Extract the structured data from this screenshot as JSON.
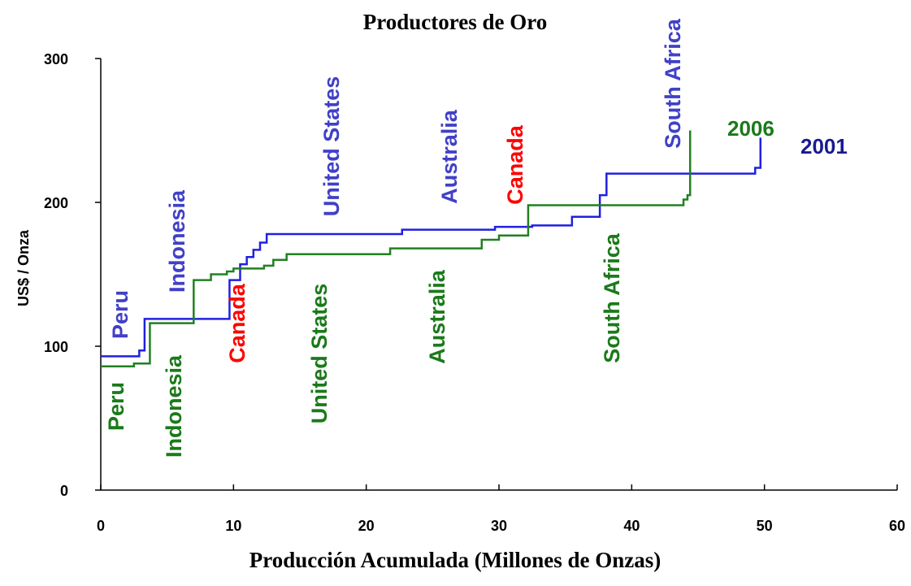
{
  "chart_data": {
    "type": "step",
    "title": "Productores de Oro",
    "x_label": "Producción Acumulada (Millones de Onzas)",
    "y_label": "US$ / Onza",
    "xlim": [
      0,
      60
    ],
    "xticks": [
      0,
      10,
      20,
      30,
      40,
      50,
      60
    ],
    "ylim": [
      0,
      300
    ],
    "yticks": [
      0,
      100,
      200,
      300
    ],
    "grid": false,
    "series": [
      {
        "name": "2001",
        "color": "#2020e0",
        "label_color": "#1a1a90",
        "x": [
          0,
          2.9,
          3.3,
          9.7,
          10.5,
          11,
          11.5,
          12,
          12.5,
          22.7,
          29.7,
          32.5,
          35.5,
          37.6,
          38.1,
          49.3,
          49.7
        ],
        "values": [
          93,
          97,
          119,
          146,
          157,
          162,
          167,
          172,
          178,
          181,
          183,
          184,
          190,
          205,
          220,
          224,
          245
        ]
      },
      {
        "name": "2006",
        "color": "#208020",
        "label_color": "#1a7a1a",
        "x": [
          0,
          2.5,
          3.7,
          7,
          8.3,
          9.5,
          10,
          12.3,
          13,
          14,
          21.8,
          28.7,
          30,
          32.2,
          43.9,
          44.2,
          44.4
        ],
        "values": [
          86,
          88,
          116,
          146,
          150,
          152,
          154,
          156,
          160,
          164,
          168,
          174,
          177,
          198,
          202,
          205,
          250
        ]
      }
    ],
    "annotations": [
      {
        "text": "Peru",
        "color": "#4040c8"
      },
      {
        "text": "Indonesia",
        "color": "#4040c8"
      },
      {
        "text": "Canada",
        "color": "#ff0000"
      },
      {
        "text": "United States",
        "color": "#4040c8"
      },
      {
        "text": "Australia",
        "color": "#4040c8"
      },
      {
        "text": "Canada",
        "color": "#ff0000"
      },
      {
        "text": "South Africa",
        "color": "#4040c8"
      },
      {
        "text": "Peru",
        "color": "#1a7a1a"
      },
      {
        "text": "Indonesia",
        "color": "#1a7a1a"
      },
      {
        "text": "United States",
        "color": "#1a7a1a"
      },
      {
        "text": "Australia",
        "color": "#1a7a1a"
      },
      {
        "text": "South Africa",
        "color": "#1a7a1a"
      }
    ]
  }
}
